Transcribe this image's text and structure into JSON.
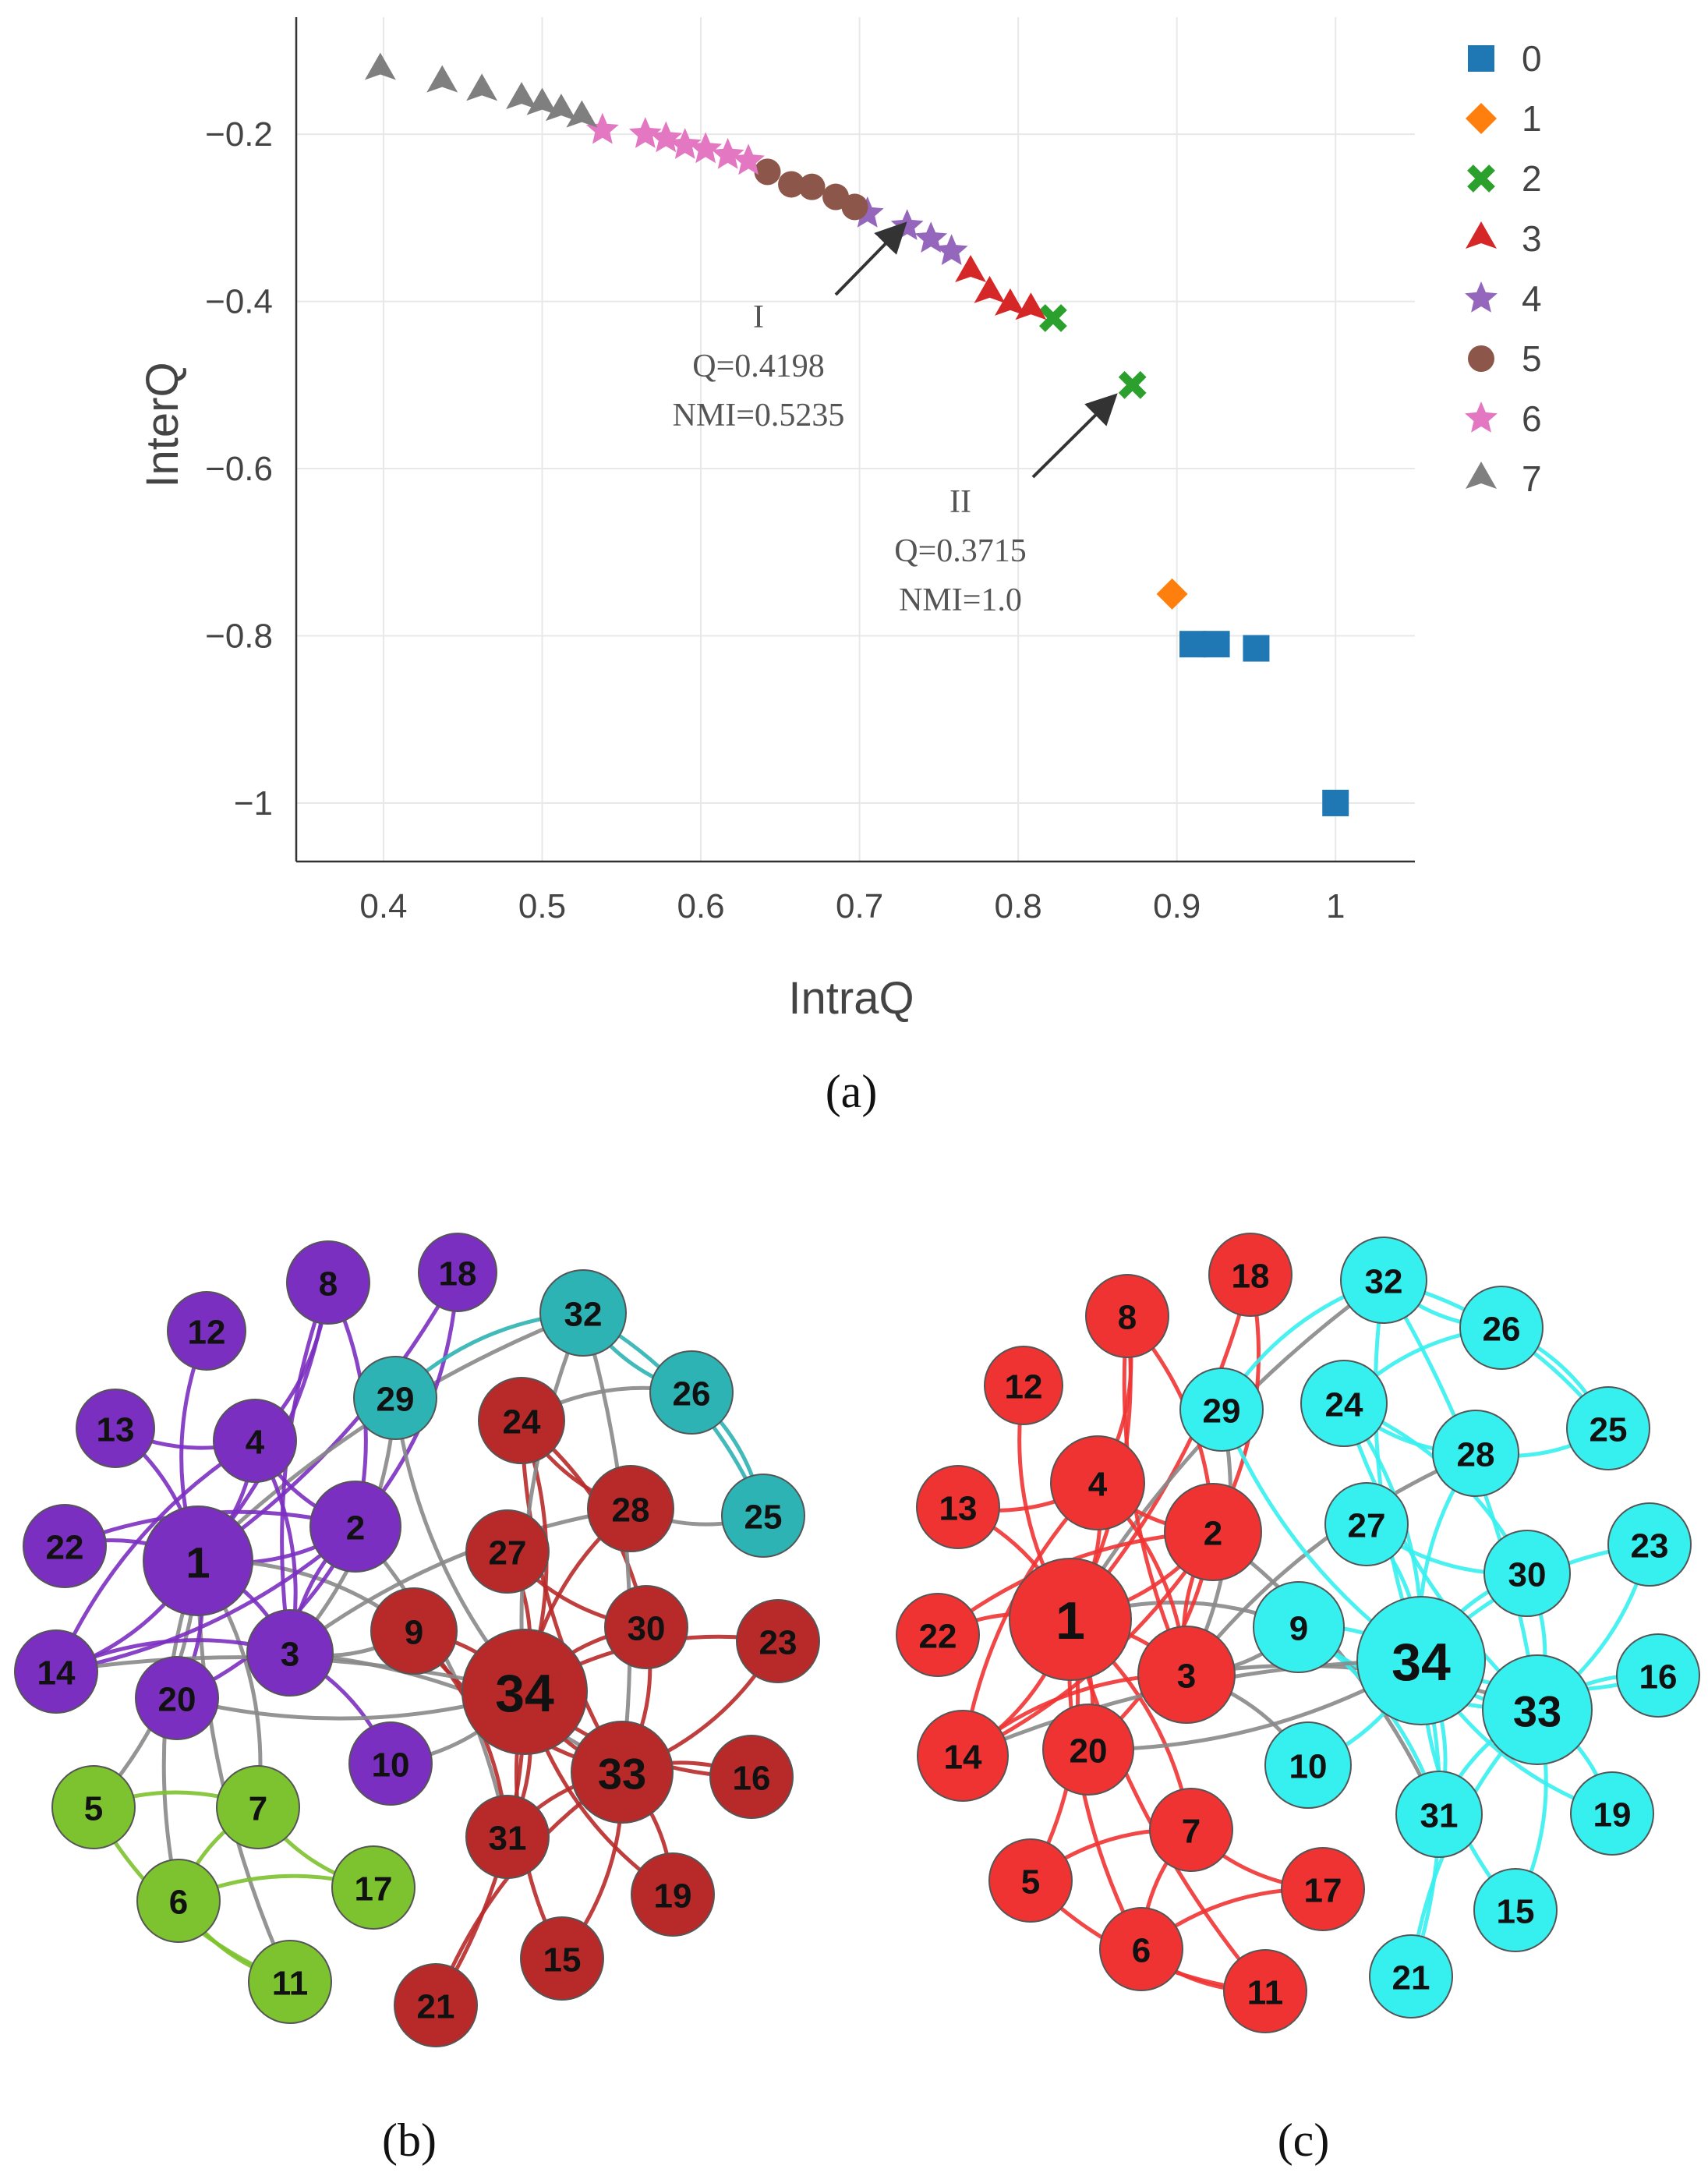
{
  "chart_data": {
    "type": "scatter",
    "title": "",
    "xlabel": "IntraQ",
    "ylabel": "InterQ",
    "xlim": [
      0.345,
      1.05
    ],
    "ylim": [
      -1.07,
      -0.06
    ],
    "xticks": [
      {
        "v": 0.4,
        "label": "0.4"
      },
      {
        "v": 0.5,
        "label": "0.5"
      },
      {
        "v": 0.6,
        "label": "0.6"
      },
      {
        "v": 0.7,
        "label": "0.7"
      },
      {
        "v": 0.8,
        "label": "0.8"
      },
      {
        "v": 0.9,
        "label": "0.9"
      },
      {
        "v": 1.0,
        "label": "1"
      }
    ],
    "yticks": [
      {
        "v": -0.2,
        "label": "−0.2"
      },
      {
        "v": -0.4,
        "label": "−0.4"
      },
      {
        "v": -0.6,
        "label": "−0.6"
      },
      {
        "v": -0.8,
        "label": "−0.8"
      },
      {
        "v": -1.0,
        "label": "−1"
      }
    ],
    "grid": true,
    "legend_position": "top-right",
    "series": [
      {
        "name": "0",
        "color": "#1f77b4",
        "marker": "square",
        "points": [
          [
            0.91,
            -0.81
          ],
          [
            0.925,
            -0.81
          ],
          [
            0.95,
            -0.815
          ],
          [
            1.0,
            -1.0
          ]
        ]
      },
      {
        "name": "1",
        "color": "#ff7f0e",
        "marker": "diamond",
        "points": [
          [
            0.897,
            -0.75
          ]
        ]
      },
      {
        "name": "2",
        "color": "#2ca02c",
        "marker": "x",
        "points": [
          [
            0.822,
            -0.42
          ],
          [
            0.872,
            -0.5
          ]
        ]
      },
      {
        "name": "3",
        "color": "#d62728",
        "marker": "triangle",
        "points": [
          [
            0.77,
            -0.365
          ],
          [
            0.782,
            -0.39
          ],
          [
            0.795,
            -0.405
          ],
          [
            0.808,
            -0.41
          ]
        ]
      },
      {
        "name": "4",
        "color": "#9467bd",
        "marker": "star",
        "points": [
          [
            0.705,
            -0.295
          ],
          [
            0.73,
            -0.31
          ],
          [
            0.745,
            -0.325
          ],
          [
            0.758,
            -0.34
          ]
        ]
      },
      {
        "name": "5",
        "color": "#8c564b",
        "marker": "circle",
        "points": [
          [
            0.642,
            -0.245
          ],
          [
            0.657,
            -0.26
          ],
          [
            0.67,
            -0.263
          ],
          [
            0.685,
            -0.275
          ],
          [
            0.697,
            -0.287
          ]
        ]
      },
      {
        "name": "6",
        "color": "#e377c2",
        "marker": "star",
        "points": [
          [
            0.538,
            -0.195
          ],
          [
            0.565,
            -0.2
          ],
          [
            0.578,
            -0.205
          ],
          [
            0.59,
            -0.213
          ],
          [
            0.603,
            -0.218
          ],
          [
            0.617,
            -0.225
          ],
          [
            0.63,
            -0.232
          ]
        ]
      },
      {
        "name": "7",
        "color": "#7f7f7f",
        "marker": "triangle",
        "points": [
          [
            0.398,
            -0.123
          ],
          [
            0.437,
            -0.138
          ],
          [
            0.462,
            -0.148
          ],
          [
            0.487,
            -0.158
          ],
          [
            0.5,
            -0.165
          ],
          [
            0.512,
            -0.172
          ],
          [
            0.525,
            -0.18
          ]
        ]
      }
    ],
    "annotations": [
      {
        "lines": [
          "I",
          "Q=0.4198",
          "NMI=0.5235"
        ],
        "point": [
          0.73,
          -0.31
        ]
      },
      {
        "lines": [
          "II",
          "Q=0.3715",
          "NMI=1.0"
        ],
        "point": [
          0.86,
          -0.51
        ]
      }
    ]
  },
  "panels": {
    "a": "(a)",
    "b": "(b)",
    "c": "(c)"
  },
  "networks": {
    "edges": [
      [
        1,
        2
      ],
      [
        1,
        3
      ],
      [
        1,
        4
      ],
      [
        1,
        5
      ],
      [
        1,
        6
      ],
      [
        1,
        7
      ],
      [
        1,
        8
      ],
      [
        1,
        9
      ],
      [
        1,
        11
      ],
      [
        1,
        12
      ],
      [
        1,
        13
      ],
      [
        1,
        14
      ],
      [
        1,
        18
      ],
      [
        1,
        20
      ],
      [
        1,
        22
      ],
      [
        1,
        32
      ],
      [
        2,
        3
      ],
      [
        2,
        4
      ],
      [
        2,
        8
      ],
      [
        2,
        14
      ],
      [
        2,
        18
      ],
      [
        2,
        20
      ],
      [
        2,
        22
      ],
      [
        2,
        31
      ],
      [
        3,
        4
      ],
      [
        3,
        8
      ],
      [
        3,
        9
      ],
      [
        3,
        10
      ],
      [
        3,
        14
      ],
      [
        3,
        28
      ],
      [
        3,
        29
      ],
      [
        3,
        33
      ],
      [
        4,
        8
      ],
      [
        4,
        13
      ],
      [
        4,
        14
      ],
      [
        5,
        7
      ],
      [
        5,
        11
      ],
      [
        6,
        7
      ],
      [
        6,
        11
      ],
      [
        6,
        17
      ],
      [
        7,
        17
      ],
      [
        9,
        31
      ],
      [
        9,
        33
      ],
      [
        9,
        34
      ],
      [
        10,
        34
      ],
      [
        14,
        34
      ],
      [
        15,
        33
      ],
      [
        15,
        34
      ],
      [
        16,
        33
      ],
      [
        16,
        34
      ],
      [
        19,
        33
      ],
      [
        19,
        34
      ],
      [
        20,
        34
      ],
      [
        21,
        33
      ],
      [
        21,
        34
      ],
      [
        23,
        33
      ],
      [
        23,
        34
      ],
      [
        24,
        26
      ],
      [
        24,
        28
      ],
      [
        24,
        30
      ],
      [
        24,
        33
      ],
      [
        24,
        34
      ],
      [
        25,
        26
      ],
      [
        25,
        28
      ],
      [
        25,
        32
      ],
      [
        26,
        32
      ],
      [
        27,
        30
      ],
      [
        27,
        34
      ],
      [
        28,
        34
      ],
      [
        29,
        32
      ],
      [
        29,
        34
      ],
      [
        30,
        33
      ],
      [
        30,
        34
      ],
      [
        31,
        33
      ],
      [
        31,
        34
      ],
      [
        32,
        33
      ],
      [
        32,
        34
      ],
      [
        33,
        34
      ]
    ],
    "b": {
      "communities": {
        "1": 0,
        "2": 0,
        "3": 0,
        "4": 0,
        "8": 0,
        "10": 0,
        "12": 0,
        "13": 0,
        "14": 0,
        "18": 0,
        "20": 0,
        "22": 0,
        "5": 1,
        "6": 1,
        "7": 1,
        "11": 1,
        "17": 1,
        "9": 2,
        "15": 2,
        "16": 2,
        "19": 2,
        "21": 2,
        "23": 2,
        "24": 2,
        "27": 2,
        "28": 2,
        "30": 2,
        "31": 2,
        "33": 2,
        "34": 2,
        "25": 3,
        "26": 3,
        "29": 3,
        "32": 3
      },
      "colors": [
        "#7b2fc0",
        "#7dc22f",
        "#b82a2a",
        "#2db3b3"
      ],
      "nodes": [
        {
          "id": 1,
          "label": "1"
        },
        {
          "id": 2,
          "label": "2"
        },
        {
          "id": 3,
          "label": "3"
        },
        {
          "id": 4,
          "label": "4"
        },
        {
          "id": 5,
          "label": "5"
        },
        {
          "id": 6,
          "label": "6"
        },
        {
          "id": 7,
          "label": "7"
        },
        {
          "id": 8,
          "label": "8"
        },
        {
          "id": 9,
          "label": "9"
        },
        {
          "id": 10,
          "label": "10"
        },
        {
          "id": 11,
          "label": "11"
        },
        {
          "id": 12,
          "label": "12"
        },
        {
          "id": 13,
          "label": "13"
        },
        {
          "id": 14,
          "label": "14"
        },
        {
          "id": 15,
          "label": "15"
        },
        {
          "id": 16,
          "label": "16"
        },
        {
          "id": 17,
          "label": "17"
        },
        {
          "id": 18,
          "label": "18"
        },
        {
          "id": 19,
          "label": "19"
        },
        {
          "id": 20,
          "label": "20"
        },
        {
          "id": 21,
          "label": "21"
        },
        {
          "id": 22,
          "label": "22"
        },
        {
          "id": 23,
          "label": "23"
        },
        {
          "id": 24,
          "label": "24"
        },
        {
          "id": 25,
          "label": "25"
        },
        {
          "id": 26,
          "label": "26"
        },
        {
          "id": 27,
          "label": "27"
        },
        {
          "id": 28,
          "label": "28"
        },
        {
          "id": 29,
          "label": "29"
        },
        {
          "id": 30,
          "label": "30"
        },
        {
          "id": 31,
          "label": "31"
        },
        {
          "id": 32,
          "label": "32"
        },
        {
          "id": 33,
          "label": "33"
        },
        {
          "id": 34,
          "label": "34"
        }
      ]
    },
    "c": {
      "communities": {
        "1": 0,
        "2": 0,
        "3": 0,
        "4": 0,
        "5": 0,
        "6": 0,
        "7": 0,
        "8": 0,
        "11": 0,
        "12": 0,
        "13": 0,
        "14": 0,
        "17": 0,
        "18": 0,
        "20": 0,
        "22": 0,
        "9": 1,
        "10": 1,
        "15": 1,
        "16": 1,
        "19": 1,
        "21": 1,
        "23": 1,
        "24": 1,
        "25": 1,
        "26": 1,
        "27": 1,
        "28": 1,
        "29": 1,
        "30": 1,
        "31": 1,
        "32": 1,
        "33": 1,
        "34": 1
      },
      "colors": [
        "#ef3333",
        "#36f0f0"
      ],
      "nodes": [
        {
          "id": 1,
          "label": "1"
        },
        {
          "id": 2,
          "label": "2"
        },
        {
          "id": 3,
          "label": "3"
        },
        {
          "id": 4,
          "label": "4"
        },
        {
          "id": 5,
          "label": "5"
        },
        {
          "id": 6,
          "label": "6"
        },
        {
          "id": 7,
          "label": "7"
        },
        {
          "id": 8,
          "label": "8"
        },
        {
          "id": 9,
          "label": "9"
        },
        {
          "id": 10,
          "label": "10"
        },
        {
          "id": 11,
          "label": "11"
        },
        {
          "id": 12,
          "label": "12"
        },
        {
          "id": 13,
          "label": "13"
        },
        {
          "id": 14,
          "label": "14"
        },
        {
          "id": 15,
          "label": "15"
        },
        {
          "id": 16,
          "label": "16"
        },
        {
          "id": 17,
          "label": "17"
        },
        {
          "id": 18,
          "label": "18"
        },
        {
          "id": 19,
          "label": "19"
        },
        {
          "id": 20,
          "label": "20"
        },
        {
          "id": 21,
          "label": "21"
        },
        {
          "id": 22,
          "label": "22"
        },
        {
          "id": 23,
          "label": "23"
        },
        {
          "id": 24,
          "label": "24"
        },
        {
          "id": 25,
          "label": "25"
        },
        {
          "id": 26,
          "label": "26"
        },
        {
          "id": 27,
          "label": "27"
        },
        {
          "id": 28,
          "label": "28"
        },
        {
          "id": 29,
          "label": "29"
        },
        {
          "id": 30,
          "label": "30"
        },
        {
          "id": 31,
          "label": "31"
        },
        {
          "id": 32,
          "label": "32"
        },
        {
          "id": 33,
          "label": "33"
        },
        {
          "id": 34,
          "label": "34"
        }
      ]
    },
    "edge_between_color": "#888888"
  }
}
